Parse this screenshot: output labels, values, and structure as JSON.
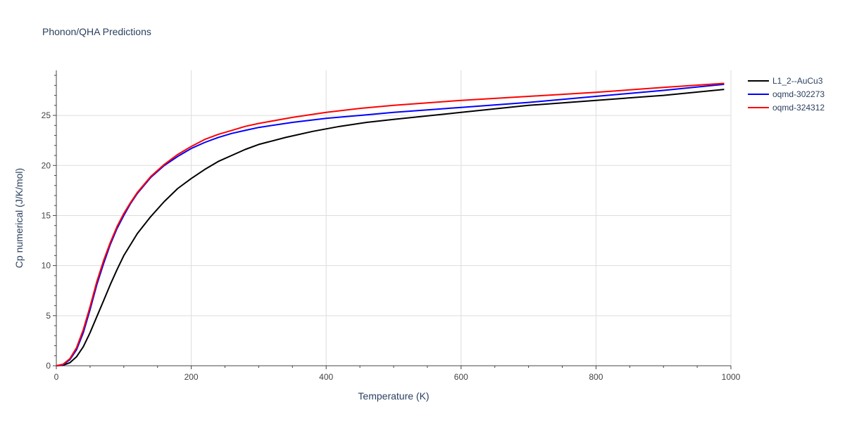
{
  "chart_data": {
    "type": "line",
    "title": "Phonon/QHA Predictions",
    "xlabel": "Temperature (K)",
    "ylabel": "Cp numerical (J/K/mol)",
    "xlim": [
      0,
      1000
    ],
    "ylim": [
      0,
      29.5
    ],
    "xticks": [
      0,
      200,
      400,
      600,
      800,
      1000
    ],
    "yticks": [
      0,
      5,
      10,
      15,
      20,
      25
    ],
    "grid": true,
    "legend_position": "top-right",
    "series": [
      {
        "name": "L1_2--AuCu3",
        "color": "#000000",
        "x": [
          0,
          10,
          20,
          30,
          40,
          50,
          60,
          70,
          80,
          90,
          100,
          120,
          140,
          160,
          180,
          200,
          220,
          240,
          260,
          280,
          300,
          340,
          380,
          420,
          460,
          500,
          600,
          700,
          800,
          880,
          900,
          990
        ],
        "y": [
          0,
          0.05,
          0.3,
          0.9,
          1.9,
          3.3,
          4.9,
          6.5,
          8.1,
          9.6,
          11.0,
          13.2,
          14.9,
          16.4,
          17.7,
          18.7,
          19.6,
          20.4,
          21.0,
          21.6,
          22.1,
          22.8,
          23.4,
          23.9,
          24.3,
          24.6,
          25.3,
          26.0,
          26.5,
          26.9,
          27.0,
          27.6
        ]
      },
      {
        "name": "oqmd-302273",
        "color": "#0000ff",
        "x": [
          0,
          10,
          20,
          30,
          40,
          50,
          60,
          70,
          80,
          90,
          100,
          110,
          120,
          140,
          160,
          180,
          200,
          220,
          240,
          260,
          280,
          300,
          350,
          400,
          450,
          500,
          600,
          700,
          800,
          900,
          990
        ],
        "y": [
          0,
          0.1,
          0.6,
          1.6,
          3.3,
          5.6,
          8.1,
          10.2,
          12.1,
          13.7,
          15.0,
          16.2,
          17.2,
          18.8,
          20.0,
          20.9,
          21.7,
          22.3,
          22.8,
          23.2,
          23.5,
          23.8,
          24.3,
          24.7,
          25.0,
          25.3,
          25.8,
          26.3,
          26.9,
          27.5,
          28.1
        ]
      },
      {
        "name": "oqmd-324312",
        "color": "#ff0000",
        "x": [
          0,
          10,
          20,
          30,
          40,
          50,
          60,
          70,
          80,
          90,
          100,
          110,
          120,
          140,
          160,
          180,
          200,
          220,
          240,
          260,
          280,
          300,
          350,
          400,
          450,
          500,
          600,
          700,
          800,
          900,
          990
        ],
        "y": [
          0,
          0.15,
          0.7,
          1.8,
          3.6,
          5.9,
          8.4,
          10.5,
          12.3,
          13.9,
          15.2,
          16.3,
          17.3,
          18.9,
          20.1,
          21.1,
          21.9,
          22.6,
          23.1,
          23.5,
          23.9,
          24.2,
          24.8,
          25.3,
          25.7,
          26.0,
          26.5,
          26.9,
          27.3,
          27.8,
          28.2
        ]
      }
    ]
  }
}
